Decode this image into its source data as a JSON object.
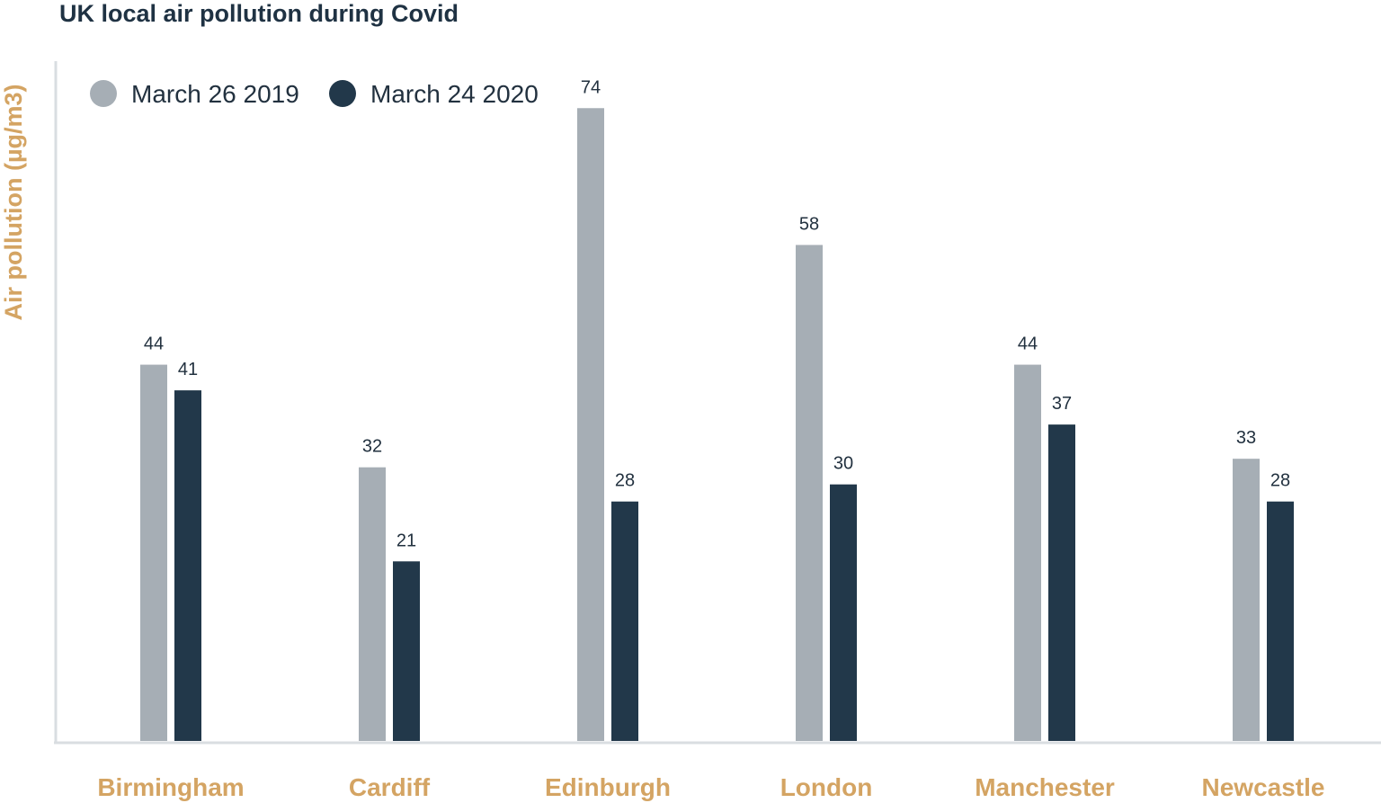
{
  "chart_data": {
    "type": "bar",
    "title": "UK local air pollution during Covid",
    "xlabel": "",
    "ylabel": "Air pollution (µg/m3)",
    "ylim": [
      0,
      80
    ],
    "grid": false,
    "legend_position": "top-left",
    "categories": [
      "Birmingham",
      "Cardiff",
      "Edinburgh",
      "London",
      "Manchester",
      "Newcastle"
    ],
    "series": [
      {
        "name": "March 26 2019",
        "color": "#a6aeb5",
        "values": [
          44,
          32,
          74,
          58,
          44,
          33
        ]
      },
      {
        "name": "March 24 2020",
        "color": "#22384a",
        "values": [
          41,
          21,
          28,
          30,
          37,
          28
        ]
      }
    ]
  },
  "colors": {
    "axis": "#d9dde1",
    "category_label": "#d4a463",
    "value_label": "#22313f",
    "title": "#1f3243"
  }
}
